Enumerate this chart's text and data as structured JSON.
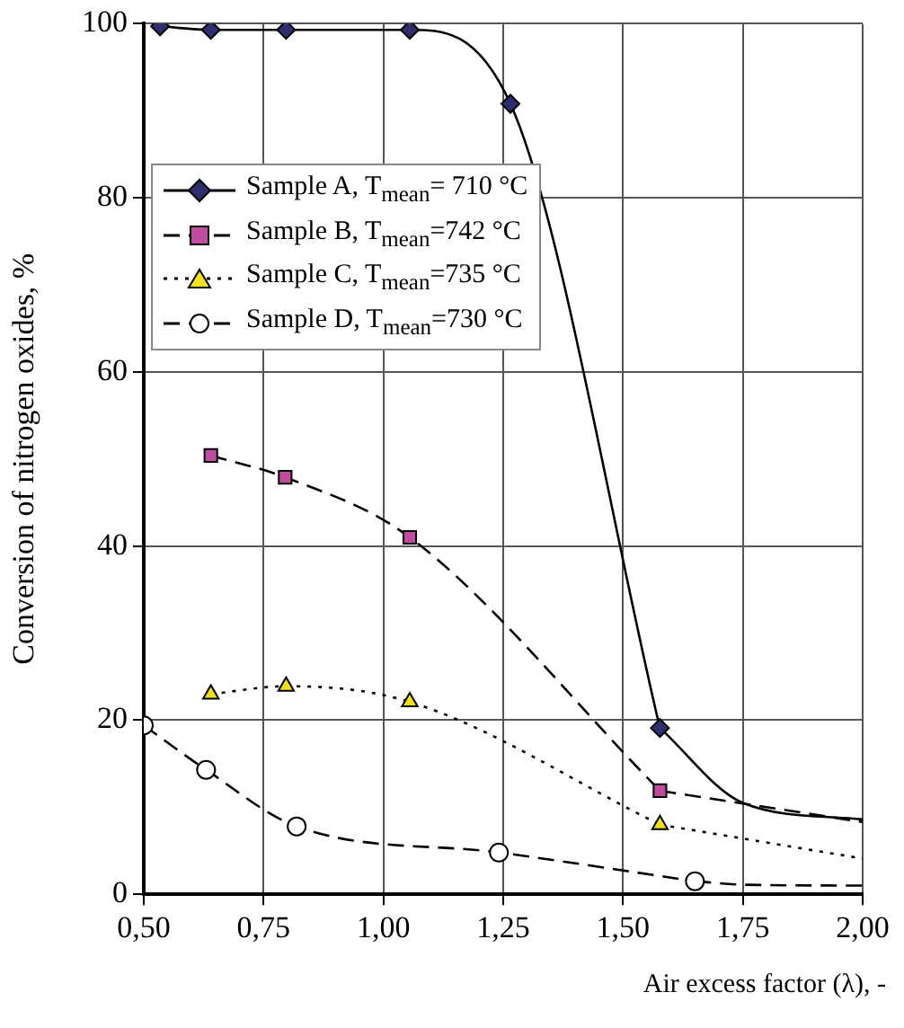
{
  "chart_data": {
    "type": "line",
    "xlabel": "Air excess factor (λ), -",
    "ylabel": "Conversion of nitrogen oxides, %",
    "xlim": [
      0.5,
      2.0
    ],
    "xticks": [
      {
        "value": 0.5,
        "label": "0,50"
      },
      {
        "value": 0.75,
        "label": "0,75"
      },
      {
        "value": 1.0,
        "label": "1,00"
      },
      {
        "value": 1.25,
        "label": "1,25"
      },
      {
        "value": 1.5,
        "label": "1,50"
      },
      {
        "value": 1.75,
        "label": "1,75"
      },
      {
        "value": 2.0,
        "label": "2,00"
      }
    ],
    "ylim": [
      0,
      100
    ],
    "yticks": [
      0,
      20,
      40,
      60,
      80,
      100
    ],
    "grid": true,
    "legend": "top left",
    "series": [
      {
        "name": "Sample A,  T$_{mean}$= 710 °C",
        "color": "#000000",
        "colors": [
          "#2e2e6e",
          "#2e2e6e",
          "#2e2e6e",
          "#2e2e6e",
          "#2e2e6e",
          "#2e2e6e"
        ],
        "marker": "diamond",
        "line_style": "solid",
        "x": [
          0.534,
          0.64,
          0.797,
          1.055,
          1.265,
          1.577
        ],
        "values": [
          99.7,
          99.3,
          99.3,
          99.3,
          90.8,
          19.1
        ]
      },
      {
        "type": "line",
        "color": "#000000",
        "marker": "none",
        "line_style": "solid",
        "x": [
          1.577,
          1.75,
          2.0
        ],
        "values": [
          19.1,
          10.5,
          8.6
        ]
      },
      {
        "name": "Sample B,  T$_{mean}$=742  °C",
        "color": "#000000",
        "colors": [
          "#c04ca0",
          "#c04ca0",
          "#c04ca0",
          "#c04ca0"
        ],
        "marker": "square",
        "line_style": "dashed",
        "x": [
          0.64,
          0.795,
          1.055,
          1.577
        ],
        "values": [
          50.4,
          47.9,
          41.0,
          11.9
        ]
      },
      {
        "type": "line",
        "color": "#000000",
        "marker": "none",
        "line_style": "dashed",
        "x": [
          1.577,
          2.0
        ],
        "values": [
          11.9,
          8.3
        ]
      },
      {
        "name": "Sample C,  T$_{mean}$=735 °C",
        "color": "#000000",
        "colors": [
          "#f0e020",
          "#f0e020",
          "#f0e020",
          "#f0e020"
        ],
        "marker": "triangle",
        "line_style": "dotted",
        "x": [
          0.64,
          0.797,
          1.055,
          1.577
        ],
        "values": [
          23.0,
          23.9,
          22.1,
          8.0
        ]
      },
      {
        "type": "line",
        "color": "#000000",
        "marker": "none",
        "line_style": "dotted",
        "x": [
          1.577,
          2.0
        ],
        "values": [
          8.0,
          4.1
        ]
      },
      {
        "name": "Sample D,  T$_{mean}$=730 °C",
        "color": "#000000",
        "colors": [
          "#ffffff",
          "#ffffff",
          "#ffffff",
          "#ffffff",
          "#ffffff"
        ],
        "marker": "circle",
        "line_style": "dashed",
        "x": [
          0.5,
          0.63,
          0.819,
          1.241,
          1.65
        ],
        "values": [
          19.4,
          14.3,
          7.8,
          4.8,
          1.5
        ]
      },
      {
        "type": "line",
        "color": "#000000",
        "marker": "none",
        "line_style": "dashed",
        "x": [
          1.65,
          1.75,
          2.0
        ],
        "values": [
          1.5,
          1.1,
          1.0
        ]
      }
    ]
  }
}
